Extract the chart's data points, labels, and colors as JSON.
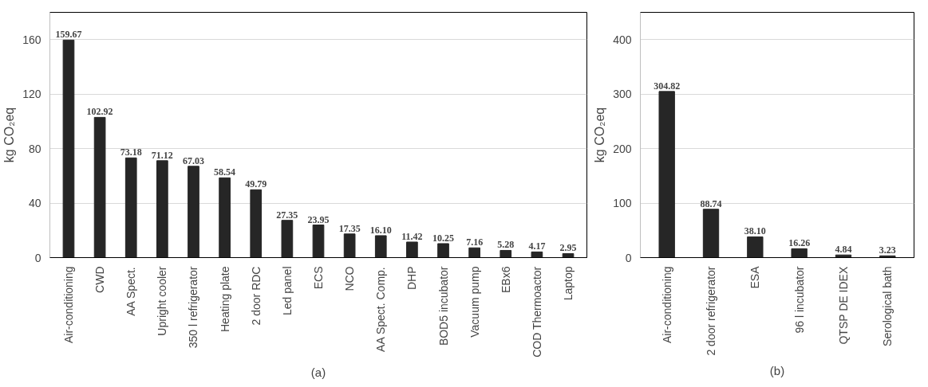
{
  "chart_data": [
    {
      "type": "bar",
      "title": "(a)",
      "ylabel": "kg CO₂eq",
      "color": "#262626",
      "grid": "y",
      "ylim": [
        0,
        180
      ],
      "yticks": [
        0,
        40,
        80,
        120,
        160
      ],
      "categories": [
        "Air-conditioning",
        "CWD",
        "AA Spect.",
        "Upright cooler",
        "350 l refrigerator",
        "Heating plate",
        "2 door RDC",
        "Led panel",
        "ECS",
        "NCO",
        "AA Spect. Comp.",
        "DHP",
        "BOD5 incubator",
        "Vacuum pump",
        "EBx6",
        "COD Thermoactor",
        "Laptop"
      ],
      "values": [
        159.67,
        102.92,
        73.18,
        71.12,
        67.03,
        58.54,
        49.79,
        27.35,
        23.95,
        17.35,
        16.1,
        11.42,
        10.25,
        7.16,
        5.28,
        4.17,
        2.95
      ],
      "value_labels": [
        "159.67",
        "102.92",
        "73.18",
        "71.12",
        "67.03",
        "58.54",
        "49.79",
        "27.35",
        "23.95",
        "17.35",
        "16.10",
        "11.42",
        "10.25",
        "7.16",
        "5.28",
        "4.17",
        "2.95"
      ]
    },
    {
      "type": "bar",
      "title": "(b)",
      "ylabel": "kg CO₂eq",
      "color": "#262626",
      "grid": "y",
      "ylim": [
        0,
        450
      ],
      "yticks": [
        0,
        100,
        200,
        300,
        400
      ],
      "categories": [
        "Air-conditioning",
        "2 door refrigerator",
        "ESA",
        "96 l incubator",
        "QTSP DE IDEX",
        "Serological bath"
      ],
      "values": [
        304.82,
        88.74,
        38.1,
        16.26,
        4.84,
        3.23
      ],
      "value_labels": [
        "304.82",
        "88.74",
        "38.10",
        "16.26",
        "4.84",
        "3.23"
      ]
    }
  ]
}
